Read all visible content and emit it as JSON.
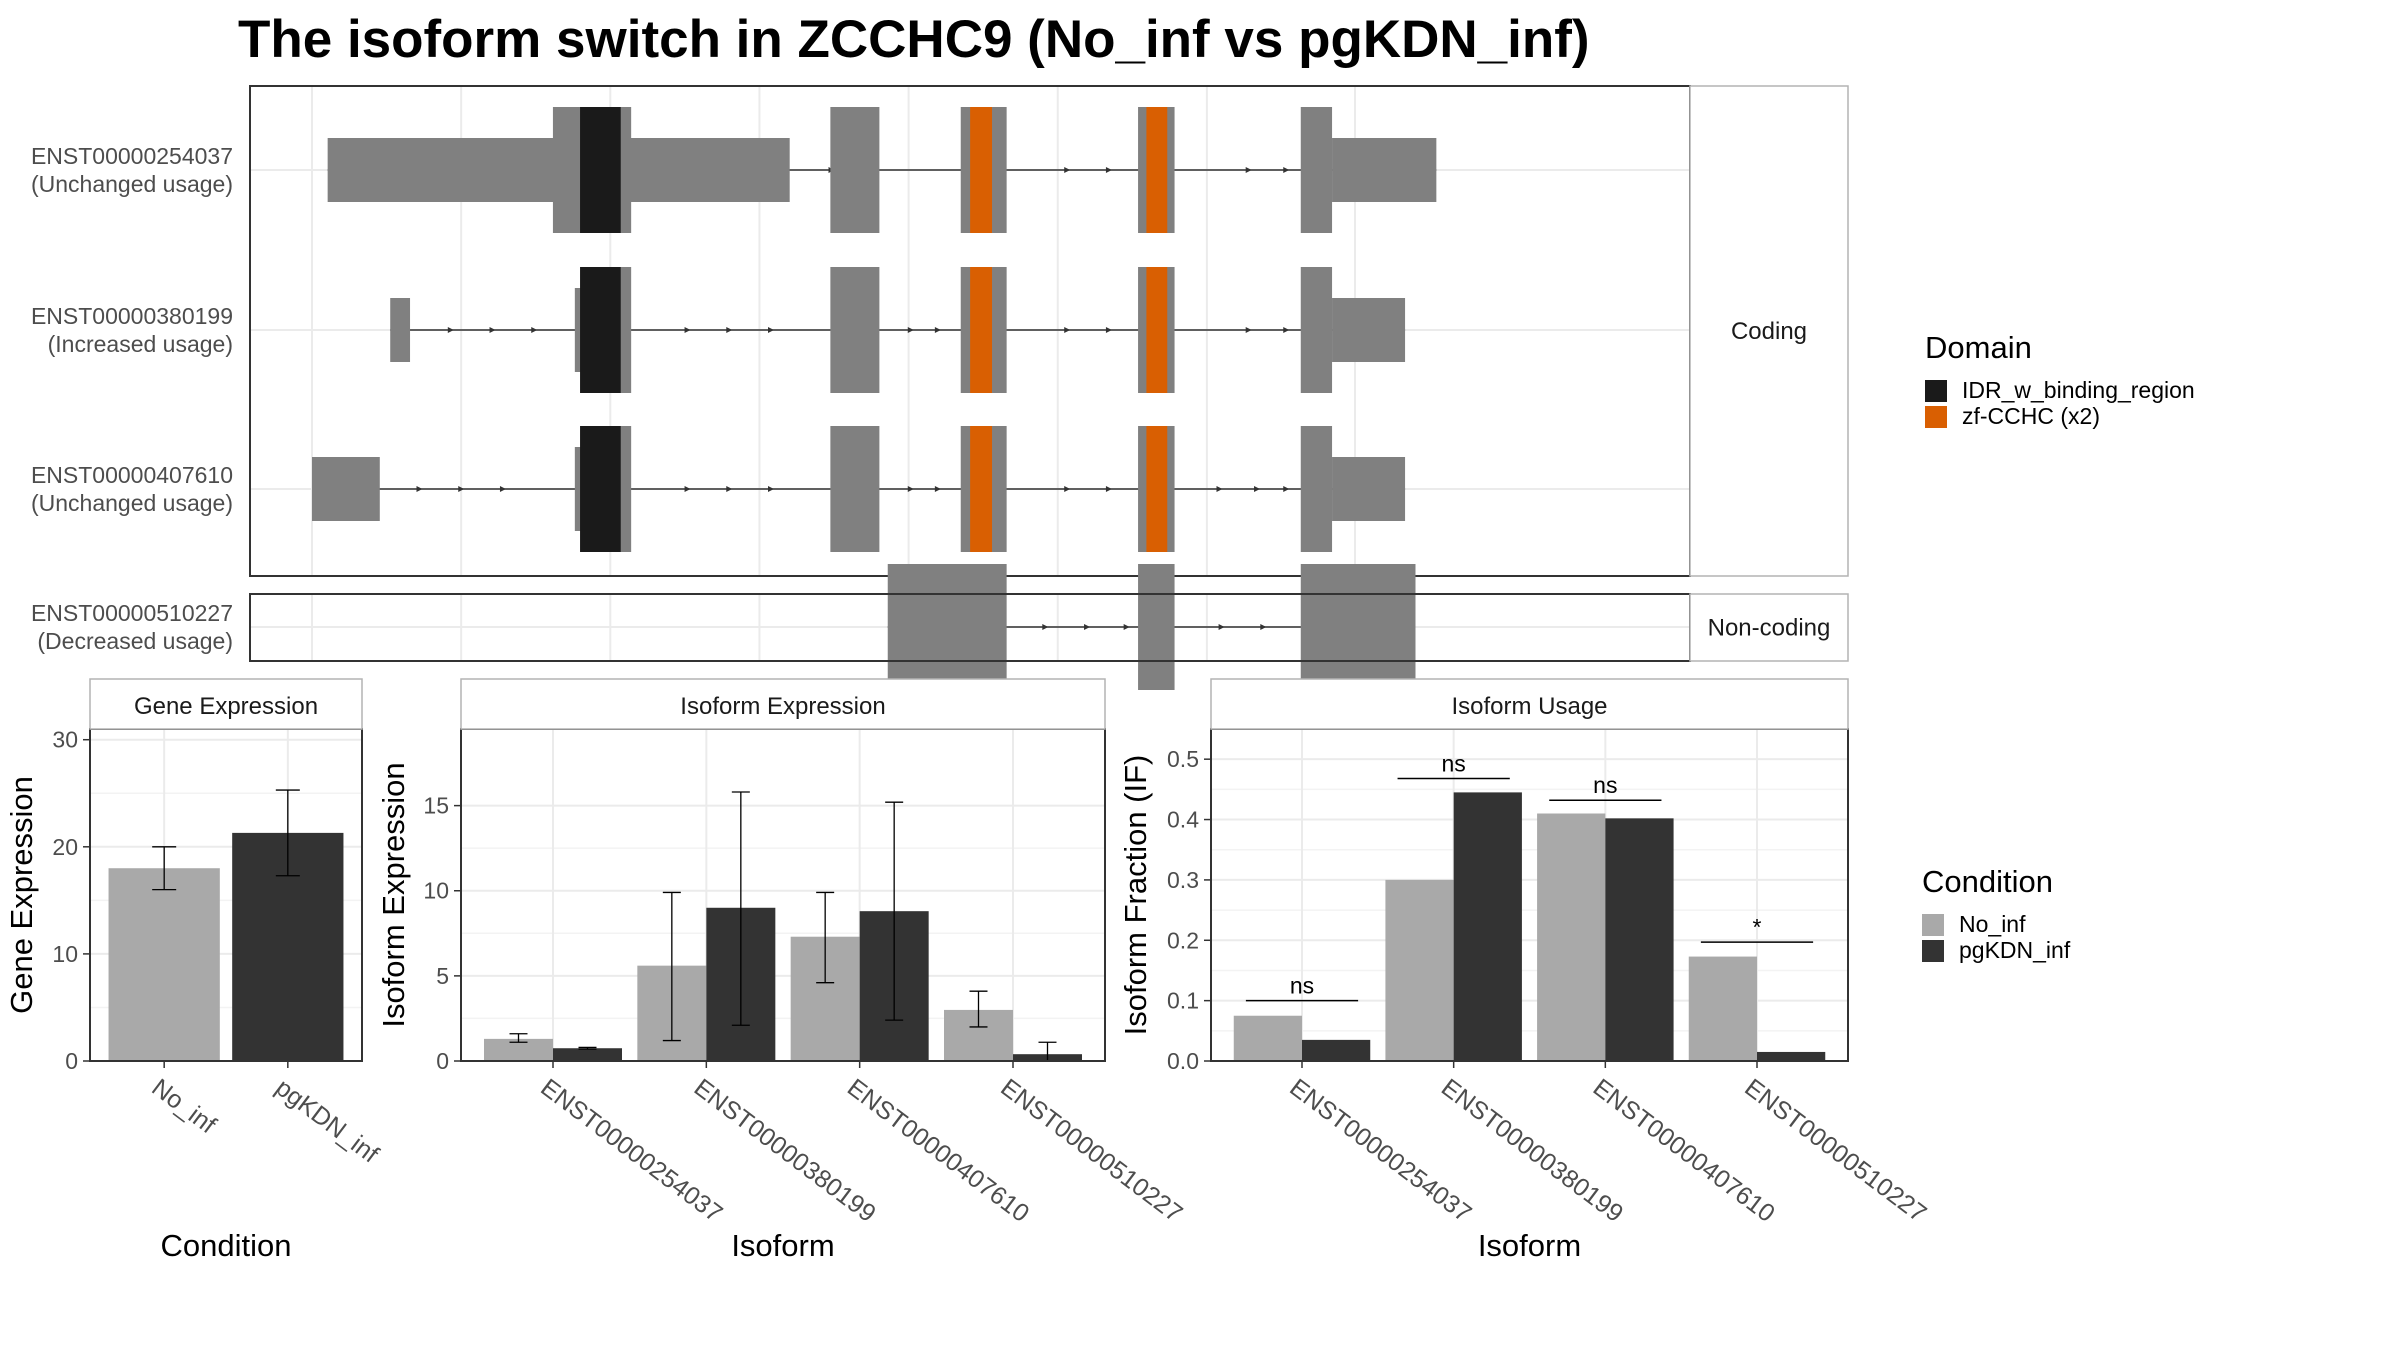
{
  "title": "The isoform switch in ZCCHC9 (No_inf vs pgKDN_inf)",
  "colors": {
    "exon": "#808080",
    "intron": "#333333",
    "panel_border": "#333333",
    "strip_fill": "#ffffff",
    "grid": "#ebebeb",
    "no_inf": "#a9a9a9",
    "pgkdn_inf": "#333333",
    "idr": "#1a1a1a",
    "zf": "#d95f02"
  },
  "structure": {
    "x_range": [
      0,
      100
    ],
    "groups": [
      {
        "label": "Coding",
        "isoforms": [
          {
            "id": "ENST00000254037",
            "usage": "(Unchanged usage)",
            "exons": [
              [
                1.5,
                45.8,
                "small"
              ],
              [
                23.1,
                26.8,
                "large"
              ],
              [
                26.8,
                30.6,
                "large"
              ],
              [
                49.7,
                54.4,
                "large"
              ],
              [
                62.2,
                66.6,
                "large"
              ],
              [
                79.2,
                82.7,
                "large"
              ],
              [
                94.8,
                97.8,
                "large"
              ],
              [
                97.8,
                107.8,
                "small"
              ]
            ],
            "domains": [
              [
                25.7,
                29.6,
                "idr"
              ],
              [
                63.1,
                65.2,
                "zf"
              ],
              [
                80.0,
                82.0,
                "zf"
              ]
            ],
            "arrows": [
              40.2,
              44.2,
              50.0,
              64.6,
              72.6,
              76.6,
              90.0,
              93.6
            ]
          },
          {
            "id": "ENST00000380199",
            "usage": "(Increased usage)",
            "exons": [
              [
                7.5,
                9.4,
                "small"
              ],
              [
                26.3,
                30.6,
                "large"
              ],
              [
                25.2,
                26.3,
                "mid"
              ],
              [
                49.7,
                54.4,
                "large"
              ],
              [
                62.2,
                66.6,
                "large"
              ],
              [
                79.2,
                82.7,
                "large"
              ],
              [
                94.8,
                97.8,
                "large"
              ],
              [
                97.8,
                104.8,
                "small"
              ]
            ],
            "domains": [
              [
                25.7,
                29.6,
                "idr"
              ],
              [
                63.1,
                65.2,
                "zf"
              ],
              [
                80.0,
                82.0,
                "zf"
              ]
            ],
            "arrows": [
              13.5,
              17.5,
              21.5,
              36.2,
              40.2,
              44.2,
              57.6,
              60.2,
              72.6,
              76.6,
              90.0,
              93.6
            ]
          },
          {
            "id": "ENST00000407610",
            "usage": "(Unchanged usage)",
            "exons": [
              [
                0,
                6.5,
                "small"
              ],
              [
                26.3,
                30.6,
                "large"
              ],
              [
                25.2,
                26.3,
                "mid"
              ],
              [
                49.7,
                54.4,
                "large"
              ],
              [
                62.2,
                66.6,
                "large"
              ],
              [
                79.2,
                82.7,
                "large"
              ],
              [
                94.8,
                97.8,
                "large"
              ],
              [
                97.8,
                104.8,
                "small"
              ]
            ],
            "domains": [
              [
                25.7,
                29.6,
                "idr"
              ],
              [
                63.1,
                65.2,
                "zf"
              ],
              [
                80.0,
                82.0,
                "zf"
              ]
            ],
            "arrows": [
              10.5,
              14.5,
              18.5,
              36.2,
              40.2,
              44.2,
              57.6,
              60.2,
              72.6,
              76.6,
              87.2,
              90.8,
              93.6
            ]
          }
        ]
      },
      {
        "label": "Non-coding",
        "isoforms": [
          {
            "id": "ENST00000510227",
            "usage": "(Decreased usage)",
            "exons": [
              [
                55.2,
                66.6,
                "large"
              ],
              [
                79.2,
                82.7,
                "large"
              ],
              [
                94.8,
                105.8,
                "large"
              ]
            ],
            "domains": [],
            "arrows": [
              70.5,
              74.5,
              78.3,
              87.4,
              91.4
            ]
          }
        ]
      }
    ]
  },
  "legend_domain": {
    "title": "Domain",
    "items": [
      {
        "label": "IDR_w_binding_region",
        "color": "#1a1a1a"
      },
      {
        "label": "zf-CCHC (x2)",
        "color": "#d95f02"
      }
    ]
  },
  "legend_condition": {
    "title": "Condition",
    "items": [
      {
        "label": "No_inf",
        "color": "#a9a9a9"
      },
      {
        "label": "pgKDN_inf",
        "color": "#333333"
      }
    ]
  },
  "chart_data": [
    {
      "type": "bar",
      "strip": "Gene Expression",
      "xlabel": "Condition",
      "ylabel": "Gene Expression",
      "ylim": [
        0,
        31
      ],
      "yticks": [
        0,
        10,
        20,
        30
      ],
      "categories": [
        "No_inf",
        "pgKDN_inf"
      ],
      "values": [
        18.0,
        21.3
      ],
      "error_low": [
        16.0,
        17.3
      ],
      "error_high": [
        20.0,
        25.3
      ],
      "colors": [
        "#a9a9a9",
        "#333333"
      ]
    },
    {
      "type": "bar",
      "strip": "Isoform Expression",
      "xlabel": "Isoform",
      "ylabel": "Isoform Expression",
      "ylim": [
        0,
        19.5
      ],
      "yticks": [
        0,
        5,
        10,
        15
      ],
      "categories": [
        "ENST00000254037",
        "ENST00000380199",
        "ENST00000407610",
        "ENST00000510227"
      ],
      "series": [
        {
          "name": "No_inf",
          "values": [
            1.3,
            5.6,
            7.3,
            3.0
          ],
          "error_low": [
            1.1,
            1.2,
            4.6,
            2.0
          ],
          "error_high": [
            1.6,
            9.9,
            9.9,
            4.1
          ]
        },
        {
          "name": "pgKDN_inf",
          "values": [
            0.75,
            9.0,
            8.8,
            0.4
          ],
          "error_low": [
            0.7,
            2.1,
            2.4,
            0.0
          ],
          "error_high": [
            0.8,
            15.8,
            15.2,
            1.1
          ]
        }
      ]
    },
    {
      "type": "bar",
      "strip": "Isoform Usage",
      "xlabel": "Isoform",
      "ylabel": "Isoform Fraction (IF)",
      "ylim": [
        0,
        0.55
      ],
      "yticks": [
        0.0,
        0.1,
        0.2,
        0.3,
        0.4,
        0.5
      ],
      "categories": [
        "ENST00000254037",
        "ENST00000380199",
        "ENST00000407610",
        "ENST00000510227"
      ],
      "series": [
        {
          "name": "No_inf",
          "values": [
            0.075,
            0.3,
            0.41,
            0.173
          ]
        },
        {
          "name": "pgKDN_inf",
          "values": [
            0.035,
            0.445,
            0.402,
            0.015
          ]
        }
      ],
      "significance": [
        {
          "label": "ns",
          "y": 0.1
        },
        {
          "label": "ns",
          "y": 0.468
        },
        {
          "label": "ns",
          "y": 0.432
        },
        {
          "label": "*",
          "y": 0.197
        }
      ]
    }
  ]
}
